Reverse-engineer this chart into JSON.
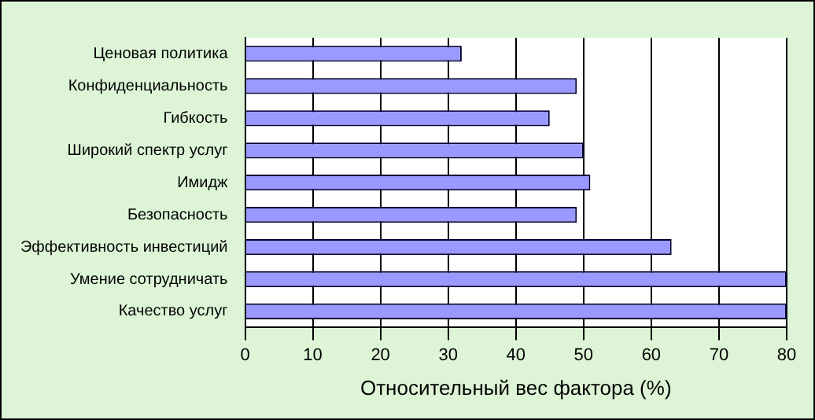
{
  "chart_data": {
    "type": "bar",
    "orientation": "horizontal",
    "xlabel": "Относительный вес фактора (%)",
    "categories": [
      "Ценовая политика",
      "Конфиденциальность",
      "Гибкость",
      "Широкий спектр услуг",
      "Имидж",
      "Безопасность",
      "Эффективность инвестиций",
      "Умение сотрудничать",
      "Качество услуг"
    ],
    "values": [
      32,
      49,
      45,
      50,
      51,
      49,
      63,
      80,
      80
    ],
    "color": "#9999ff",
    "xlim": [
      0,
      80
    ],
    "xticks": [
      0,
      10,
      20,
      30,
      40,
      50,
      60,
      70,
      80
    ],
    "grid": "x",
    "legend": false
  }
}
